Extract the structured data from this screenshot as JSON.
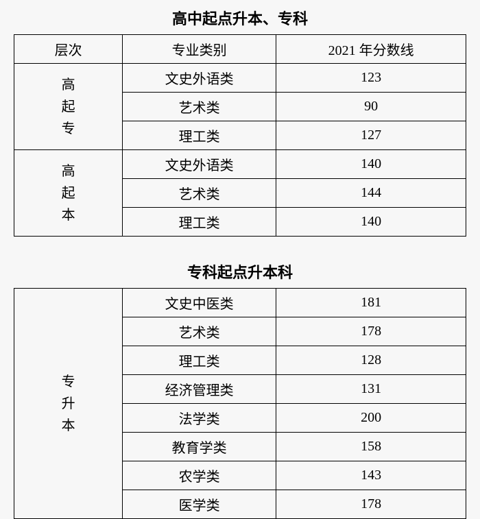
{
  "section1": {
    "title": "高中起点升本、专科",
    "headers": {
      "level": "层次",
      "category": "专业类别",
      "score": "2021 年分数线"
    },
    "groups": [
      {
        "level": "高起专",
        "rows": [
          {
            "category": "文史外语类",
            "score": "123"
          },
          {
            "category": "艺术类",
            "score": "90"
          },
          {
            "category": "理工类",
            "score": "127"
          }
        ]
      },
      {
        "level": "高起本",
        "rows": [
          {
            "category": "文史外语类",
            "score": "140"
          },
          {
            "category": "艺术类",
            "score": "144"
          },
          {
            "category": "理工类",
            "score": "140"
          }
        ]
      }
    ]
  },
  "section2": {
    "title": "专科起点升本科",
    "groups": [
      {
        "level": "专升本",
        "rows": [
          {
            "category": "文史中医类",
            "score": "181"
          },
          {
            "category": "艺术类",
            "score": "178"
          },
          {
            "category": "理工类",
            "score": "128"
          },
          {
            "category": "经济管理类",
            "score": "131"
          },
          {
            "category": "法学类",
            "score": "200"
          },
          {
            "category": "教育学类",
            "score": "158"
          },
          {
            "category": "农学类",
            "score": "143"
          },
          {
            "category": "医学类",
            "score": "178"
          }
        ]
      }
    ]
  },
  "style": {
    "background_color": "#f7f7f7",
    "border_color": "#000000",
    "text_color": "#000000",
    "title_fontsize": 22,
    "cell_fontsize": 20,
    "font_family": "SimSun"
  }
}
